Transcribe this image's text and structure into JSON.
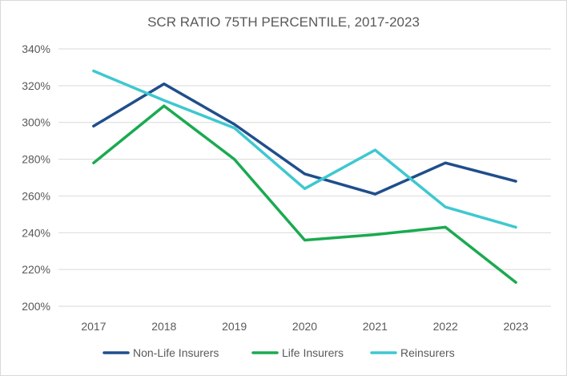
{
  "chart_data": {
    "type": "line",
    "title": "SCR RATIO 75TH PERCENTILE, 2017-2023",
    "xlabel": "",
    "ylabel": "",
    "categories": [
      "2017",
      "2018",
      "2019",
      "2020",
      "2021",
      "2022",
      "2023"
    ],
    "y_ticks": [
      "200%",
      "220%",
      "240%",
      "260%",
      "280%",
      "300%",
      "320%",
      "340%"
    ],
    "ylim": [
      200,
      340
    ],
    "grid": true,
    "legend_position": "bottom",
    "series": [
      {
        "name": "Non-Life Insurers",
        "color": "#1f4e8c",
        "values": [
          298,
          321,
          299,
          272,
          261,
          278,
          268
        ]
      },
      {
        "name": "Life Insurers",
        "color": "#1aaa50",
        "values": [
          278,
          309,
          280,
          236,
          239,
          243,
          213
        ]
      },
      {
        "name": "Reinsurers",
        "color": "#3ec8d0",
        "values": [
          328,
          312,
          297,
          264,
          285,
          254,
          243
        ]
      }
    ]
  }
}
